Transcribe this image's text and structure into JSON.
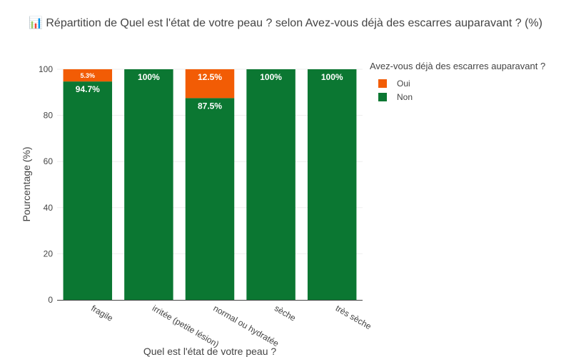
{
  "chart_data": {
    "type": "bar",
    "stacked": true,
    "title": "📊 Répartition de Quel est l'état de votre peau ? selon Avez-vous déjà des escarres auparavant ? (%)",
    "xlabel": "Quel est l'état de votre peau ?",
    "ylabel": "Pourcentage (%)",
    "ylim": [
      0,
      100
    ],
    "yticks": [
      0,
      20,
      40,
      60,
      80,
      100
    ],
    "categories": [
      "fragile",
      "irritée (petite lésion)",
      "normal ou hydratée",
      "sèche",
      "très sèche"
    ],
    "legend": {
      "title": "Avez-vous déjà des escarres auparavant ?",
      "placement": "top-right"
    },
    "series": [
      {
        "name": "Non",
        "color": "#0b7732",
        "values": [
          94.7,
          100,
          87.5,
          100,
          100
        ],
        "labels": [
          "94.7%",
          "100%",
          "87.5%",
          "100%",
          "100%"
        ]
      },
      {
        "name": "Oui",
        "color": "#f25c05",
        "values": [
          5.3,
          0,
          12.5,
          0,
          0
        ],
        "labels": [
          "5.3%",
          "",
          "12.5%",
          "",
          ""
        ]
      }
    ]
  }
}
